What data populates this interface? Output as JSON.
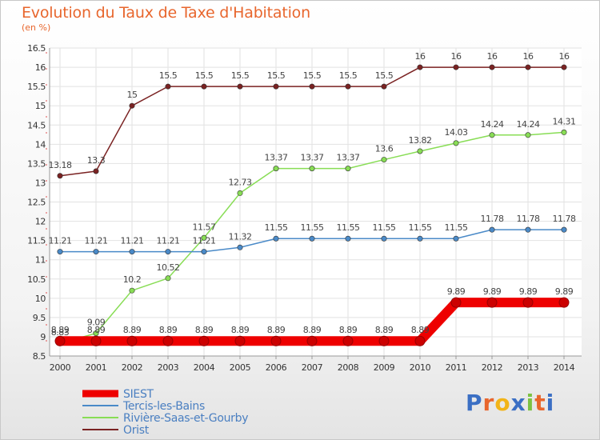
{
  "header": {
    "title": "Evolution du Taux de Taxe d'Habitation",
    "unit": "(en %)"
  },
  "brand": {
    "letters": [
      "P",
      "r",
      "o",
      "x",
      "i",
      "t",
      "i"
    ],
    "colors": [
      "#3b6fc4",
      "#e8662d",
      "#f2b418",
      "#3b6fc4",
      "#7cc242",
      "#e8662d",
      "#3b6fc4"
    ]
  },
  "chart_data": {
    "type": "line",
    "title": "Evolution du Taux de Taxe d'Habitation",
    "ylabel": "(en %)",
    "xlabel": "",
    "x": [
      2000,
      2001,
      2002,
      2003,
      2004,
      2005,
      2006,
      2007,
      2008,
      2009,
      2010,
      2011,
      2012,
      2013,
      2014
    ],
    "ylim": [
      8.5,
      16.5
    ],
    "yticks": [
      8.5,
      9,
      9.5,
      10,
      10.5,
      11,
      11.5,
      12,
      12.5,
      13,
      13.5,
      14,
      14.5,
      15,
      15.5,
      16,
      16.5
    ],
    "grid": true,
    "legend_position": "bottom-left",
    "series": [
      {
        "name": "SIEST",
        "color": "#ee0000",
        "values": [
          8.89,
          8.89,
          8.89,
          8.89,
          8.89,
          8.89,
          8.89,
          8.89,
          8.89,
          8.89,
          8.89,
          9.89,
          9.89,
          9.89,
          9.89
        ],
        "labels": [
          "8.89",
          "8.89",
          "8.89",
          "8.89",
          "8.89",
          "8.89",
          "8.89",
          "8.89",
          "8.89",
          "8.89",
          "8.89",
          "9.89",
          "9.89",
          "9.89",
          "9.89"
        ]
      },
      {
        "name": "Tercis-les-Bains",
        "color": "#4a8ac8",
        "values": [
          11.21,
          11.21,
          11.21,
          11.21,
          11.21,
          11.32,
          11.55,
          11.55,
          11.55,
          11.55,
          11.55,
          11.55,
          11.78,
          11.78,
          11.78
        ],
        "labels": [
          "11.21",
          "11.21",
          "11.21",
          "11.21",
          "11.21",
          "11.32",
          "11.55",
          "11.55",
          "11.55",
          "11.55",
          "11.55",
          "11.55",
          "11.78",
          "11.78",
          "11.78"
        ]
      },
      {
        "name": "Rivière-Saas-et-Gourby",
        "color": "#88dd55",
        "values": [
          8.83,
          9.09,
          10.2,
          10.52,
          11.57,
          12.73,
          13.37,
          13.37,
          13.37,
          13.6,
          13.82,
          14.03,
          14.24,
          14.24,
          14.31
        ],
        "labels": [
          "8.83",
          "9.09",
          "10.2",
          "10.52",
          "11.57",
          "12.73",
          "13.37",
          "13.37",
          "13.37",
          "13.6",
          "13.82",
          "14.03",
          "14.24",
          "14.24",
          "14.31"
        ]
      },
      {
        "name": "Orist",
        "color": "#7a2222",
        "values": [
          13.18,
          13.3,
          15,
          15.5,
          15.5,
          15.5,
          15.5,
          15.5,
          15.5,
          15.5,
          16,
          16,
          16,
          16,
          16
        ],
        "labels": [
          "13.18",
          "13.3",
          "15",
          "15.5",
          "15.5",
          "15.5",
          "15.5",
          "15.5",
          "15.5",
          "15.5",
          "16",
          "16",
          "16",
          "16",
          "16"
        ]
      }
    ]
  }
}
